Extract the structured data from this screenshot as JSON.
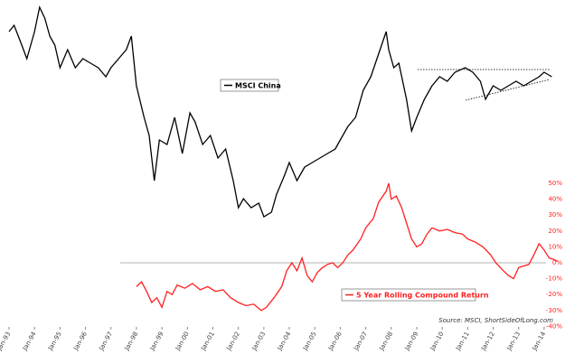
{
  "chart_data": {
    "type": "line",
    "source": "Source: MSCI, ShortSideOfLong.com",
    "xlim": [
      1993,
      2014.5
    ],
    "xticks": [
      {
        "value": 1993,
        "label": "Jan-93"
      },
      {
        "value": 1994,
        "label": "Jan-94"
      },
      {
        "value": 1995,
        "label": "Jan-95"
      },
      {
        "value": 1996,
        "label": "Jan-96"
      },
      {
        "value": 1997,
        "label": "Jan-97"
      },
      {
        "value": 1998,
        "label": "Jan-98"
      },
      {
        "value": 1999,
        "label": "Jan-99"
      },
      {
        "value": 2000,
        "label": "Jan-00"
      },
      {
        "value": 2001,
        "label": "Jan-01"
      },
      {
        "value": 2002,
        "label": "Jan-02"
      },
      {
        "value": 2003,
        "label": "Jan-03"
      },
      {
        "value": 2004,
        "label": "Jan-04"
      },
      {
        "value": 2005,
        "label": "Jan-05"
      },
      {
        "value": 2006,
        "label": "Jan-06"
      },
      {
        "value": 2007,
        "label": "Jan-07"
      },
      {
        "value": 2008,
        "label": "Jan-08"
      },
      {
        "value": 2009,
        "label": "Jan-09"
      },
      {
        "value": 2010,
        "label": "Jan-10"
      },
      {
        "value": 2011,
        "label": "Jan-11"
      },
      {
        "value": 2012,
        "label": "Jan-12"
      },
      {
        "value": 2013,
        "label": "Jan-13"
      },
      {
        "value": 2014,
        "label": "Jan-14"
      }
    ],
    "ylim": [
      0,
      100
    ],
    "y2lim": [
      -40,
      50
    ],
    "y2ticks": [
      {
        "value": 50,
        "label": "50%"
      },
      {
        "value": 40,
        "label": "40%"
      },
      {
        "value": 30,
        "label": "30%"
      },
      {
        "value": 20,
        "label": "20%"
      },
      {
        "value": 10,
        "label": "10%"
      },
      {
        "value": 0,
        "label": "0%"
      },
      {
        "value": -10,
        "label": "-10%"
      },
      {
        "value": -20,
        "label": "-20%"
      },
      {
        "value": -30,
        "label": "-30%"
      },
      {
        "value": -40,
        "label": "-40%"
      }
    ],
    "series": [
      {
        "name": "MSCI China",
        "color": "#000000",
        "axis": "y",
        "x": [
          1993.0,
          1993.2,
          1993.5,
          1993.7,
          1994.0,
          1994.2,
          1994.4,
          1994.6,
          1994.8,
          1995.0,
          1995.3,
          1995.6,
          1995.9,
          1996.2,
          1996.5,
          1996.8,
          1997.0,
          1997.3,
          1997.6,
          1997.8,
          1998.0,
          1998.3,
          1998.5,
          1998.7,
          1998.9,
          1999.2,
          1999.5,
          1999.8,
          2000.1,
          2000.3,
          2000.6,
          2000.9,
          2001.2,
          2001.5,
          2001.8,
          2002.0,
          2002.2,
          2002.5,
          2002.8,
          2003.0,
          2003.3,
          2003.5,
          2003.8,
          2004.0,
          2004.3,
          2004.6,
          2004.9,
          2005.2,
          2005.5,
          2005.8,
          2006.0,
          2006.3,
          2006.6,
          2006.9,
          2007.2,
          2007.5,
          2007.8,
          2007.9,
          2008.1,
          2008.3,
          2008.6,
          2008.8,
          2009.0,
          2009.3,
          2009.6,
          2009.9,
          2010.2,
          2010.5,
          2010.9,
          2011.2,
          2011.5,
          2011.7,
          2012.0,
          2012.3,
          2012.6,
          2012.9,
          2013.2,
          2013.5,
          2013.8,
          2014.0,
          2014.3
        ],
        "values": [
          86,
          88.8,
          80,
          74,
          86,
          96.8,
          92,
          84,
          80,
          70,
          78,
          70,
          74,
          72,
          70,
          66,
          70,
          74,
          78,
          84,
          62,
          48,
          40,
          20,
          38,
          36,
          48,
          32,
          50,
          46,
          36,
          40,
          30,
          34,
          20,
          8,
          12,
          8,
          10,
          4,
          6,
          14,
          22,
          28,
          20,
          26,
          28,
          30,
          32,
          34,
          38,
          44,
          48,
          60,
          66,
          76,
          86,
          78,
          70,
          72,
          56,
          42,
          48,
          56,
          62,
          66,
          64,
          68,
          70,
          68,
          64,
          56,
          62,
          60,
          62,
          64,
          62,
          64,
          66,
          68,
          66
        ]
      },
      {
        "name": "5 Year Rolling Compound Return",
        "color": "#ff2020",
        "axis": "y2",
        "x": [
          1998.0,
          1998.2,
          1998.4,
          1998.6,
          1998.8,
          1999.0,
          1999.2,
          1999.4,
          1999.6,
          1999.9,
          2000.2,
          2000.5,
          2000.8,
          2001.1,
          2001.4,
          2001.7,
          2002.0,
          2002.3,
          2002.6,
          2002.9,
          2003.1,
          2003.4,
          2003.7,
          2003.9,
          2004.1,
          2004.3,
          2004.5,
          2004.7,
          2004.9,
          2005.1,
          2005.3,
          2005.5,
          2005.7,
          2005.9,
          2006.1,
          2006.3,
          2006.5,
          2006.8,
          2007.0,
          2007.3,
          2007.5,
          2007.8,
          2007.9,
          2008.0,
          2008.2,
          2008.4,
          2008.6,
          2008.8,
          2009.0,
          2009.2,
          2009.4,
          2009.6,
          2009.9,
          2010.2,
          2010.5,
          2010.8,
          2011.0,
          2011.3,
          2011.6,
          2011.9,
          2012.1,
          2012.4,
          2012.6,
          2012.8,
          2013.0,
          2013.2,
          2013.4,
          2013.6,
          2013.8,
          2014.0,
          2014.2,
          2014.4,
          2014.5
        ],
        "values": [
          -15,
          -12,
          -18,
          -25,
          -22,
          -28,
          -18,
          -20,
          -14,
          -16,
          -13,
          -17,
          -15,
          -18,
          -17,
          -22,
          -25,
          -27,
          -26,
          -30,
          -28,
          -22,
          -15,
          -5,
          0,
          -5,
          3,
          -8,
          -12,
          -6,
          -3,
          -1,
          0,
          -3,
          0,
          5,
          8,
          15,
          22,
          28,
          38,
          45,
          50,
          40,
          42,
          35,
          25,
          15,
          10,
          12,
          18,
          22,
          20,
          21,
          19,
          18,
          15,
          13,
          10,
          5,
          0,
          -5,
          -8,
          -10,
          -3,
          -2,
          -1,
          5,
          12,
          8,
          3,
          2,
          1
        ]
      }
    ]
  }
}
